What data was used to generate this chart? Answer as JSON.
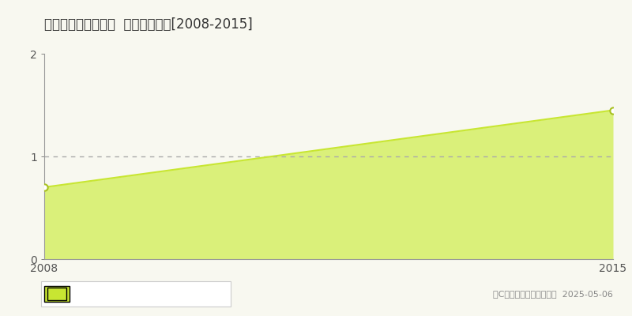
{
  "title": "香取郡多古町南借当  土地価格推移[2008-2015]",
  "x_values": [
    2008,
    2015
  ],
  "y_values": [
    0.7,
    1.45
  ],
  "xlim": [
    2008,
    2015
  ],
  "ylim": [
    0,
    2
  ],
  "yticks": [
    0,
    1,
    2
  ],
  "xticks": [
    2008,
    2015
  ],
  "line_color": "#c8e632",
  "fill_color": "#daf07a",
  "fill_alpha": 1.0,
  "marker_color": "white",
  "marker_edge_color": "#a8c020",
  "dashed_line_y": 1,
  "dashed_line_color": "#aaaaaa",
  "copyright_text": "（C）土地価格ドットコム  2025-05-06",
  "bg_color": "#f8f8f0",
  "plot_bg_color": "#f8f8f0",
  "title_fontsize": 12,
  "axis_fontsize": 10,
  "legend_fontsize": 9
}
